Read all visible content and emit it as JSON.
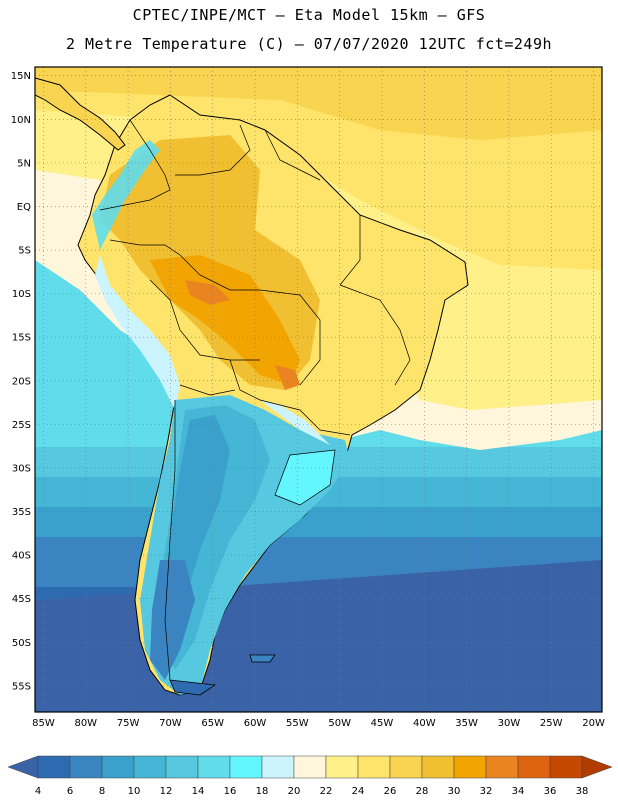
{
  "header": {
    "line1": "CPTEC/INPE/MCT –  Eta Model 15km – GFS",
    "line2": "2 Metre Temperature (C) – 07/07/2020 12UTC fct=249h"
  },
  "map": {
    "lat_labels": [
      "15N",
      "10N",
      "5N",
      "EQ",
      "5S",
      "10S",
      "15S",
      "20S",
      "25S",
      "30S",
      "35S",
      "40S",
      "45S",
      "50S",
      "55S"
    ],
    "lon_labels": [
      "85W",
      "80W",
      "75W",
      "70W",
      "65W",
      "60W",
      "55W",
      "50W",
      "45W",
      "40W",
      "35W",
      "30W",
      "25W",
      "20W"
    ],
    "lon_range": [
      -86,
      -19
    ],
    "lat_range": [
      -58,
      16
    ]
  },
  "colorbar": {
    "labels": [
      "4",
      "6",
      "8",
      "10",
      "12",
      "14",
      "16",
      "18",
      "20",
      "22",
      "24",
      "26",
      "28",
      "30",
      "32",
      "34",
      "36",
      "38"
    ],
    "colors": [
      "#3a62a6",
      "#2e6ab0",
      "#3a84c1",
      "#3aa0cc",
      "#46b6d6",
      "#56c8df",
      "#60dceb",
      "#64f6ff",
      "#ccf4ff",
      "#fff6dc",
      "#fff08a",
      "#fee46a",
      "#f8d450",
      "#f0c032",
      "#f2a400",
      "#ea8420",
      "#df6410",
      "#c44800",
      "#b03c00"
    ]
  }
}
